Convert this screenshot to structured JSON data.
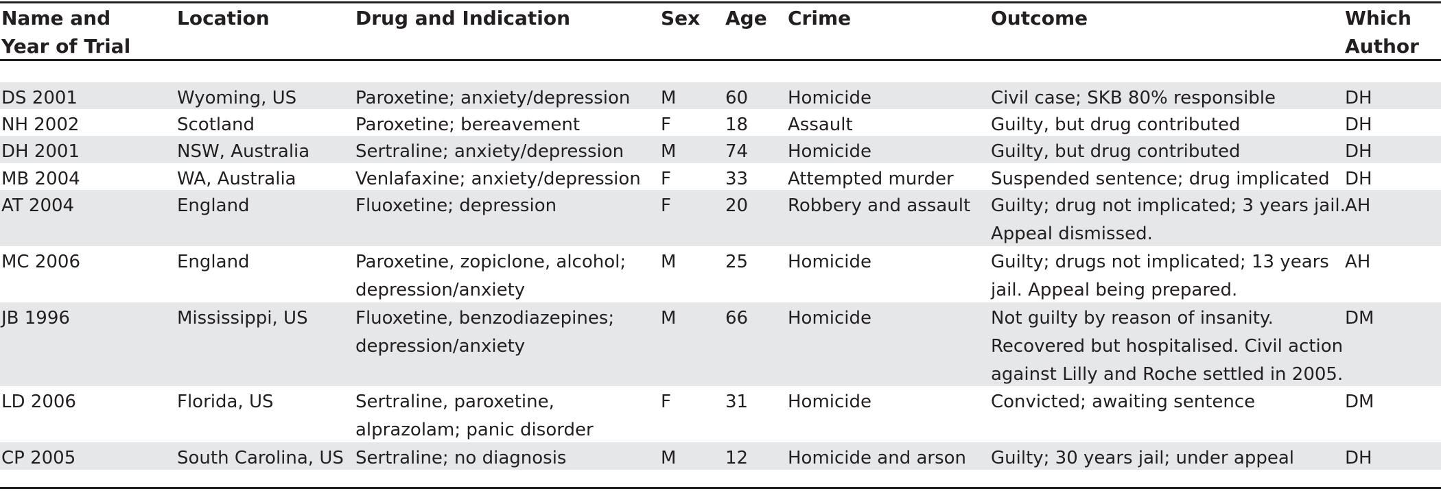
{
  "table": {
    "headers": [
      "Name and\nYear of Trial",
      "Location",
      "Drug and Indication",
      "Sex",
      "Age",
      "Crime",
      "Outcome",
      "Which\nAuthor"
    ],
    "rows": [
      {
        "name": "DS 2001",
        "location": "Wyoming, US",
        "drug": "Paroxetine; anxiety/depression",
        "sex": "M",
        "age": "60",
        "crime": "Homicide",
        "outcome": "Civil case; SKB 80% responsible",
        "author": "DH"
      },
      {
        "name": "NH 2002",
        "location": "Scotland",
        "drug": "Paroxetine; bereavement",
        "sex": "F",
        "age": "18",
        "crime": "Assault",
        "outcome": "Guilty, but drug contributed",
        "author": "DH"
      },
      {
        "name": "DH 2001",
        "location": "NSW, Australia",
        "drug": "Sertraline; anxiety/depression",
        "sex": "M",
        "age": "74",
        "crime": "Homicide",
        "outcome": "Guilty, but drug contributed",
        "author": "DH"
      },
      {
        "name": "MB 2004",
        "location": "WA, Australia",
        "drug": "Venlafaxine; anxiety/depression",
        "sex": "F",
        "age": "33",
        "crime": "Attempted murder",
        "outcome": "Suspended sentence; drug implicated",
        "author": "DH"
      },
      {
        "name": "AT 2004",
        "location": "England",
        "drug": "Fluoxetine; depression",
        "sex": "F",
        "age": "20",
        "crime": "Robbery and assault",
        "outcome": "Guilty; drug not implicated; 3 years jail. Appeal dismissed.",
        "author": "AH"
      },
      {
        "name": "MC 2006",
        "location": "England",
        "drug": "Paroxetine, zopiclone, alcohol; depression/anxiety",
        "sex": "M",
        "age": "25",
        "crime": "Homicide",
        "outcome": "Guilty; drugs not implicated; 13 years jail. Appeal being prepared.",
        "author": "AH"
      },
      {
        "name": "JB 1996",
        "location": "Mississippi, US",
        "drug": "Fluoxetine, benzodiazepines; depression/anxiety",
        "sex": "M",
        "age": "66",
        "crime": "Homicide",
        "outcome": "Not guilty by reason of insanity. Recovered but hospitalised. Civil action against Lilly and Roche settled in 2005.",
        "author": "DM"
      },
      {
        "name": "LD 2006",
        "location": "Florida, US",
        "drug": "Sertraline,  paroxetine, alprazolam; panic disorder",
        "sex": "F",
        "age": "31",
        "crime": "Homicide",
        "outcome": "Convicted; awaiting sentence",
        "author": "DM"
      },
      {
        "name": "CP 2005",
        "location": "South Carolina, US",
        "drug": "Sertraline; no diagnosis",
        "sex": "M",
        "age": "12",
        "crime": "Homicide and arson",
        "outcome": "Guilty; 30 years jail; under appeal",
        "author": "DH"
      }
    ]
  }
}
